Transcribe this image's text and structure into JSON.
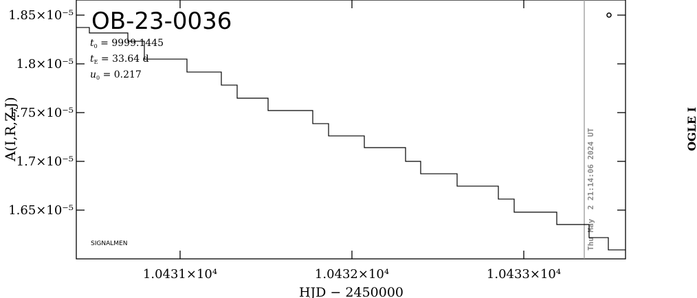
{
  "chart_data": {
    "type": "line",
    "title": "OB-23-0036",
    "parameters": [
      {
        "symbol": "t",
        "sub": "0",
        "text": " = 9999.1445"
      },
      {
        "symbol": "t",
        "sub": "E",
        "text": " = 33.64  d"
      },
      {
        "symbol": "u",
        "sub": "0",
        "text": " = 0.217"
      }
    ],
    "x_label": "HJD − 2450000",
    "y_label": "A(I,R,Z,J)",
    "observatory": "OGLE I",
    "timestamp": "Thu May  2 21:14:06 2024 UT",
    "credit": "SIGNALMEN",
    "now_line": 10433.352,
    "xlim": [
      10430.396,
      10433.592
    ],
    "xticks": [
      {
        "value": 10431,
        "label": "1.0431×10⁴"
      },
      {
        "value": 10432,
        "label": "1.0432×10⁴"
      },
      {
        "value": 10433,
        "label": "1.0433×10⁴"
      }
    ],
    "ylim": [
      1.6e-05,
      1.8655e-05
    ],
    "yticks": [
      {
        "value": 1.85e-05,
        "label": "1.85×10⁻⁵"
      },
      {
        "value": 1.8e-05,
        "label": "1.8×10⁻⁵"
      },
      {
        "value": 1.75e-05,
        "label": "1.75×10⁻⁵"
      },
      {
        "value": 1.7e-05,
        "label": "1.7×10⁻⁵"
      },
      {
        "value": 1.65e-05,
        "label": "1.65×10⁻⁵"
      }
    ],
    "series": [
      {
        "color": "#000000",
        "x": [
          10430.396,
          10430.472,
          10430.472,
          10430.696,
          10430.696,
          10430.792,
          10430.792,
          10431.04,
          10431.04,
          10431.24,
          10431.24,
          10431.332,
          10431.332,
          10431.512,
          10431.512,
          10431.772,
          10431.772,
          10431.864,
          10431.864,
          10432.072,
          10432.072,
          10432.312,
          10432.312,
          10432.4,
          10432.4,
          10432.612,
          10432.612,
          10432.852,
          10432.852,
          10432.944,
          10432.944,
          10433.192,
          10433.192,
          10433.38,
          10433.38,
          10433.492,
          10433.492,
          10433.592
        ],
        "values": [
          1.8373e-05,
          1.8373e-05,
          1.8317e-05,
          1.8317e-05,
          1.8232e-05,
          1.8232e-05,
          1.8049e-05,
          1.8049e-05,
          1.7916e-05,
          1.7916e-05,
          1.7782e-05,
          1.7782e-05,
          1.7648e-05,
          1.7648e-05,
          1.7521e-05,
          1.7521e-05,
          1.7387e-05,
          1.7387e-05,
          1.7261e-05,
          1.7261e-05,
          1.7141e-05,
          1.7141e-05,
          1.7e-05,
          1.7e-05,
          1.6873e-05,
          1.6873e-05,
          1.6746e-05,
          1.6746e-05,
          1.6613e-05,
          1.6613e-05,
          1.6479e-05,
          1.6479e-05,
          1.6352e-05,
          1.6352e-05,
          1.6218e-05,
          1.6218e-05,
          1.6092e-05,
          1.6092e-05
        ]
      }
    ]
  }
}
